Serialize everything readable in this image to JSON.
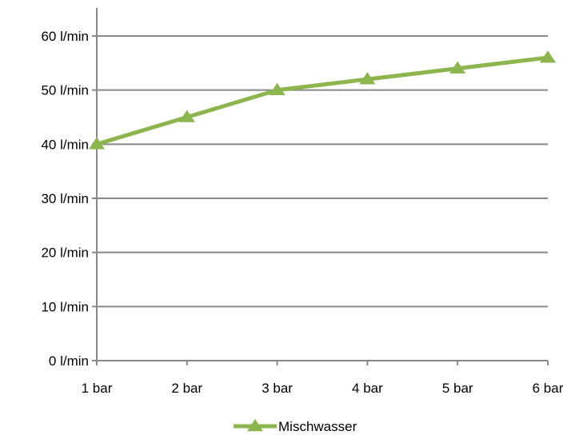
{
  "chart_data": {
    "type": "line",
    "title": "",
    "xlabel": "",
    "ylabel": "",
    "categories": [
      "1 bar",
      "2 bar",
      "3 bar",
      "4 bar",
      "5 bar",
      "6 bar"
    ],
    "series": [
      {
        "name": "Mischwasser",
        "values": [
          40,
          45,
          50,
          52,
          54,
          56
        ],
        "color": "#8DB54E",
        "marker": "triangle"
      }
    ],
    "ylim": [
      0,
      60
    ],
    "yticks": [
      0,
      10,
      20,
      30,
      40,
      50,
      60
    ],
    "ytick_labels": [
      "0 l/min",
      "10 l/min",
      "20 l/min",
      "30 l/min",
      "40 l/min",
      "50 l/min",
      "60 l/min"
    ],
    "grid": true,
    "legend": "bottom"
  }
}
